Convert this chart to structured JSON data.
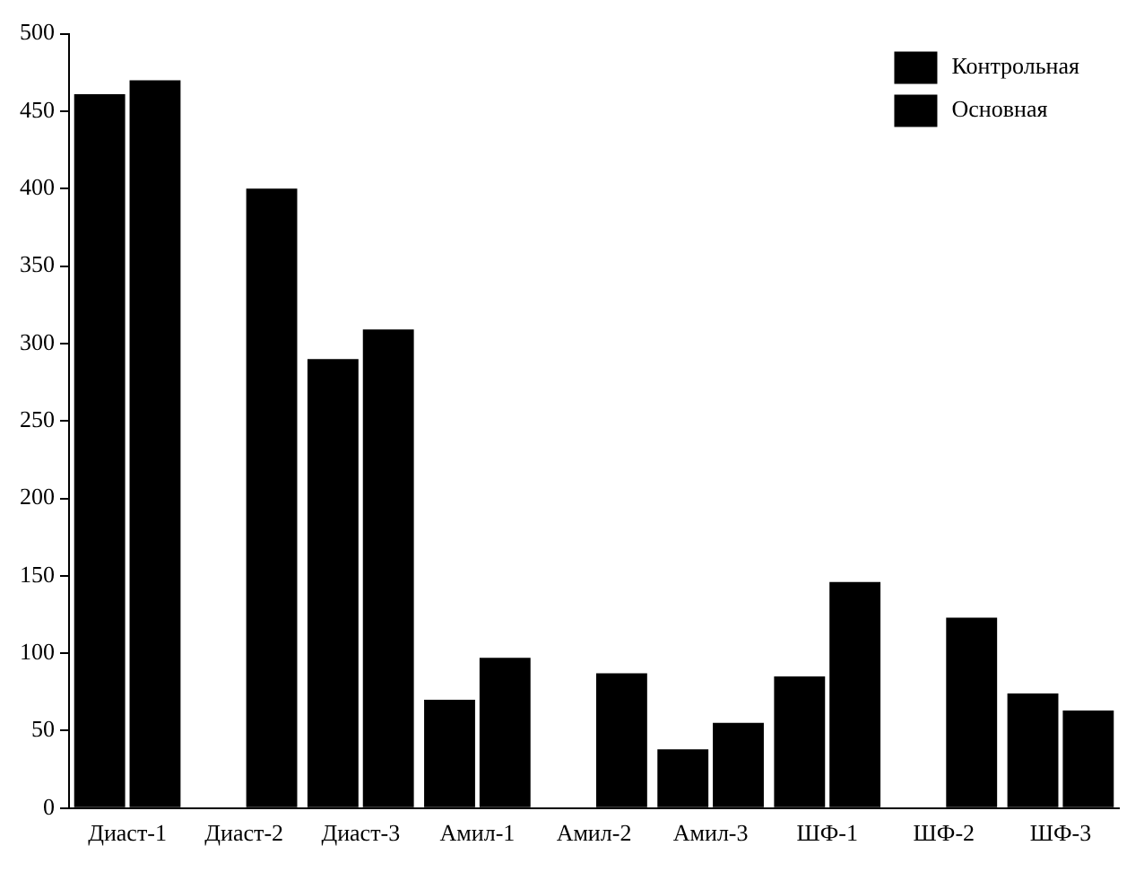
{
  "chart_data": {
    "type": "bar",
    "categories": [
      "Диаст-1",
      "Диаст-2",
      "Диаст-3",
      "Амил-1",
      "Амил-2",
      "Амил-3",
      "ШФ-1",
      "ШФ-2",
      "ШФ-3"
    ],
    "series": [
      {
        "name": "Контрольная",
        "color": "#000000",
        "values": [
          461,
          0,
          290,
          70,
          0,
          38,
          85,
          0,
          74
        ]
      },
      {
        "name": "Основная",
        "color": "#000000",
        "values": [
          470,
          400,
          309,
          97,
          87,
          55,
          146,
          123,
          63
        ]
      }
    ],
    "ylim": [
      0,
      500
    ],
    "yticks": [
      0,
      50,
      100,
      150,
      200,
      250,
      300,
      350,
      400,
      450,
      500
    ],
    "grid": false,
    "legend": "top right"
  }
}
